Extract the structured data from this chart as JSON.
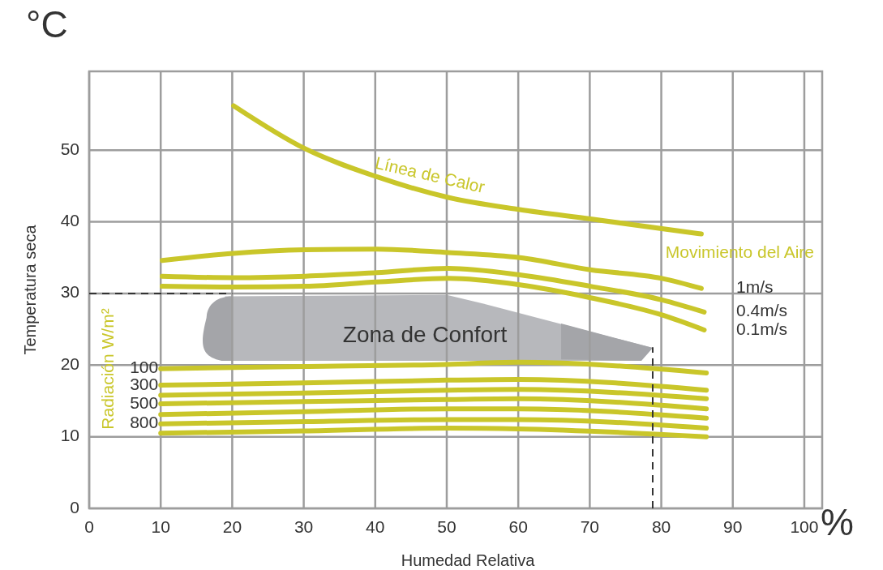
{
  "chart_data": {
    "type": "line",
    "xlabel": "Humedad Relativa",
    "ylabel": "Temperatura seca",
    "xlim": [
      0,
      102.5
    ],
    "ylim": [
      0,
      61
    ],
    "xticks": [
      0,
      10,
      20,
      30,
      40,
      50,
      60,
      70,
      80,
      90,
      100
    ],
    "yticks": [
      0,
      10,
      20,
      30,
      40,
      50
    ],
    "grid": true,
    "marker": "none",
    "annotations": [
      "°C",
      "%",
      "Movimiento del Aire",
      "Radiación W/m²",
      "Zona de Confort"
    ],
    "series": [
      {
        "name": "Línea de Calor",
        "color": "#c9c62a",
        "x": [
          20.2,
          30.2,
          40.2,
          50.2,
          60.2,
          70.1,
          85.6
        ],
        "values": [
          56.2,
          50.2,
          46.3,
          43.4,
          41.7,
          40.4,
          38.3
        ]
      },
      {
        "name": "1m/s",
        "color": "#c9c62a",
        "x": [
          10.2,
          20.2,
          30.2,
          40.2,
          50.2,
          60.2,
          70.1,
          80.1,
          85.6
        ],
        "values": [
          34.6,
          35.6,
          36.1,
          36.2,
          35.7,
          35.0,
          33.3,
          32.1,
          30.7
        ]
      },
      {
        "name": "0.4m/s",
        "color": "#c9c62a",
        "x": [
          10.2,
          20.2,
          30.2,
          40.2,
          50.2,
          60.2,
          70.1,
          80.1,
          86.0
        ],
        "values": [
          32.4,
          32.2,
          32.4,
          32.9,
          33.5,
          32.6,
          31.0,
          29.1,
          27.4
        ]
      },
      {
        "name": "0.1m/s",
        "color": "#c9c62a",
        "x": [
          10.2,
          20.2,
          30.2,
          40.2,
          50.2,
          60.2,
          70.1,
          80.1,
          86.0
        ],
        "values": [
          31.0,
          30.9,
          31.0,
          31.6,
          32.1,
          31.2,
          29.4,
          27.0,
          24.9
        ]
      },
      {
        "name": "100",
        "color": "#c9c62a",
        "x": [
          10,
          30,
          50,
          60,
          86.3
        ],
        "values": [
          19.5,
          19.8,
          20.1,
          20.4,
          18.9
        ]
      },
      {
        "name": "300",
        "color": "#c9c62a",
        "x": [
          10,
          30,
          50,
          60,
          86.3
        ],
        "values": [
          17.2,
          17.5,
          17.9,
          18.0,
          16.5
        ]
      },
      {
        "color": "#c9c62a",
        "x": [
          10,
          30,
          50,
          60,
          86.3
        ],
        "values": [
          15.8,
          16.1,
          16.5,
          16.6,
          15.3
        ]
      },
      {
        "name": "500",
        "color": "#c9c62a",
        "x": [
          10,
          30,
          50,
          60,
          86.3
        ],
        "values": [
          14.6,
          14.9,
          15.2,
          15.3,
          13.9
        ]
      },
      {
        "color": "#c9c62a",
        "x": [
          10,
          30,
          50,
          60,
          86.3
        ],
        "values": [
          13.1,
          13.5,
          13.9,
          13.9,
          12.6
        ]
      },
      {
        "name": "800",
        "color": "#c9c62a",
        "x": [
          10,
          30,
          50,
          60,
          86.3
        ],
        "values": [
          11.8,
          12.1,
          12.4,
          12.4,
          11.2
        ]
      },
      {
        "color": "#c9c62a",
        "x": [
          10,
          30,
          50,
          60,
          86.3
        ],
        "values": [
          10.5,
          10.8,
          11.2,
          11.1,
          10.0
        ]
      },
      {
        "color": "#333333",
        "line_style": "dashed",
        "x": [
          0,
          20
        ],
        "values": [
          30,
          30
        ]
      },
      {
        "color": "#333333",
        "line_style": "dashed",
        "x": [
          78.8,
          78.8
        ],
        "values": [
          0,
          22.5
        ]
      }
    ]
  }
}
